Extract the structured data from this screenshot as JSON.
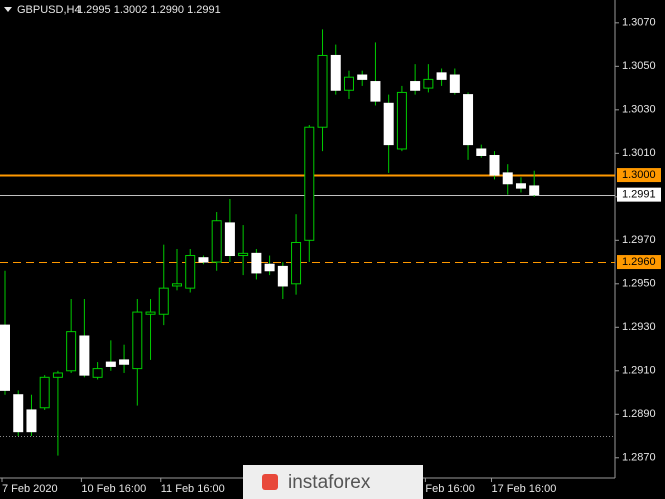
{
  "chart_data": {
    "type": "candlestick",
    "title": "GBPUSD,H4",
    "subtitle": "1.2995 1.3002 1.2990 1.2991",
    "watermark": "instaforex",
    "categories": [
      "7 Feb 2020",
      null,
      null,
      null,
      null,
      null,
      "10 Feb 16:00",
      null,
      null,
      null,
      null,
      null,
      "11 Feb 16:00",
      null,
      null,
      null,
      null,
      null,
      null,
      null,
      null,
      null,
      null,
      null,
      null,
      null,
      null,
      null,
      null,
      null,
      null,
      null,
      "Feb 16:00",
      null,
      null,
      null,
      null,
      "17 Feb 16:00",
      null,
      null,
      null
    ],
    "open": [
      1.2931,
      1.2899,
      1.2892,
      1.2893,
      1.2907,
      1.291,
      1.2926,
      1.2907,
      1.2914,
      1.2915,
      1.2911,
      1.2936,
      1.2936,
      1.2949,
      1.2948,
      1.2962,
      1.296,
      1.2978,
      1.2963,
      1.2964,
      1.2959,
      1.2958,
      1.295,
      1.297,
      1.3022,
      1.3055,
      1.3039,
      1.3046,
      1.3043,
      1.3033,
      1.3012,
      1.3043,
      1.304,
      1.3047,
      1.3046,
      1.3037,
      1.3012,
      1.3009,
      1.3001,
      1.2996,
      1.2995
    ],
    "high": [
      1.2956,
      1.2901,
      1.2899,
      1.2908,
      1.291,
      1.2943,
      1.2943,
      1.2914,
      1.2924,
      1.2922,
      1.2943,
      1.2943,
      1.2968,
      1.2966,
      1.2966,
      1.2963,
      1.2983,
      1.2989,
      1.2977,
      1.2966,
      1.2963,
      1.296,
      1.2982,
      1.3023,
      1.3067,
      1.306,
      1.3048,
      1.3048,
      1.3061,
      1.3037,
      1.3041,
      1.3051,
      1.3051,
      1.3049,
      1.3049,
      1.3038,
      1.3014,
      1.3011,
      1.3005,
      1.2999,
      1.3002
    ],
    "low": [
      1.2899,
      1.288,
      1.288,
      1.2892,
      1.2871,
      1.2909,
      1.2907,
      1.2906,
      1.291,
      1.2909,
      1.2894,
      1.2915,
      1.2931,
      1.2947,
      1.2946,
      1.2959,
      1.2956,
      1.296,
      1.2954,
      1.2952,
      1.2954,
      1.2943,
      1.2945,
      1.296,
      1.3011,
      1.3037,
      1.3035,
      1.3041,
      1.3032,
      1.3001,
      1.3011,
      1.3037,
      1.3038,
      1.3041,
      1.3037,
      1.3007,
      1.3008,
      1.2998,
      1.2991,
      1.2992,
      1.299
    ],
    "close": [
      1.2901,
      1.2882,
      1.2882,
      1.2907,
      1.2909,
      1.2928,
      1.2908,
      1.2911,
      1.2912,
      1.2913,
      1.2937,
      1.2937,
      1.2948,
      1.295,
      1.2963,
      1.296,
      1.2979,
      1.2963,
      1.2964,
      1.2955,
      1.2956,
      1.2949,
      1.2969,
      1.3022,
      1.3055,
      1.3039,
      1.3045,
      1.3044,
      1.3034,
      1.3014,
      1.3038,
      1.3039,
      1.3044,
      1.3044,
      1.3038,
      1.3014,
      1.3009,
      1.3,
      1.2996,
      1.2994,
      1.2991
    ],
    "up_color": "#00cc00",
    "down_color": "#ffffff",
    "ylim": [
      1.28607,
      1.30805
    ],
    "yticks": [
      {
        "value": 1.307,
        "label": "1.3070"
      },
      {
        "value": 1.305,
        "label": "1.3050"
      },
      {
        "value": 1.303,
        "label": "1.3030"
      },
      {
        "value": 1.301,
        "label": "1.3010"
      },
      {
        "value": 1.299,
        "label": "1.2990"
      },
      {
        "value": 1.297,
        "label": "1.2970"
      },
      {
        "value": 1.295,
        "label": "1.2950"
      },
      {
        "value": 1.293,
        "label": "1.2930"
      },
      {
        "value": 1.291,
        "label": "1.2910"
      },
      {
        "value": 1.289,
        "label": "1.2890"
      },
      {
        "value": 1.287,
        "label": "1.2870"
      }
    ],
    "levels": [
      {
        "value": 1.3,
        "label": "1.3000",
        "color": "#ff9900",
        "style": "solid"
      },
      {
        "value": 1.296,
        "label": "1.2960",
        "color": "#ff9900",
        "style": "dashed"
      },
      {
        "value": 1.2991,
        "label": "1.2991",
        "color": "#c0c0c0",
        "style": "thin"
      },
      {
        "value": 1.288,
        "color": "#8a8a8a",
        "style": "dotted"
      }
    ]
  }
}
